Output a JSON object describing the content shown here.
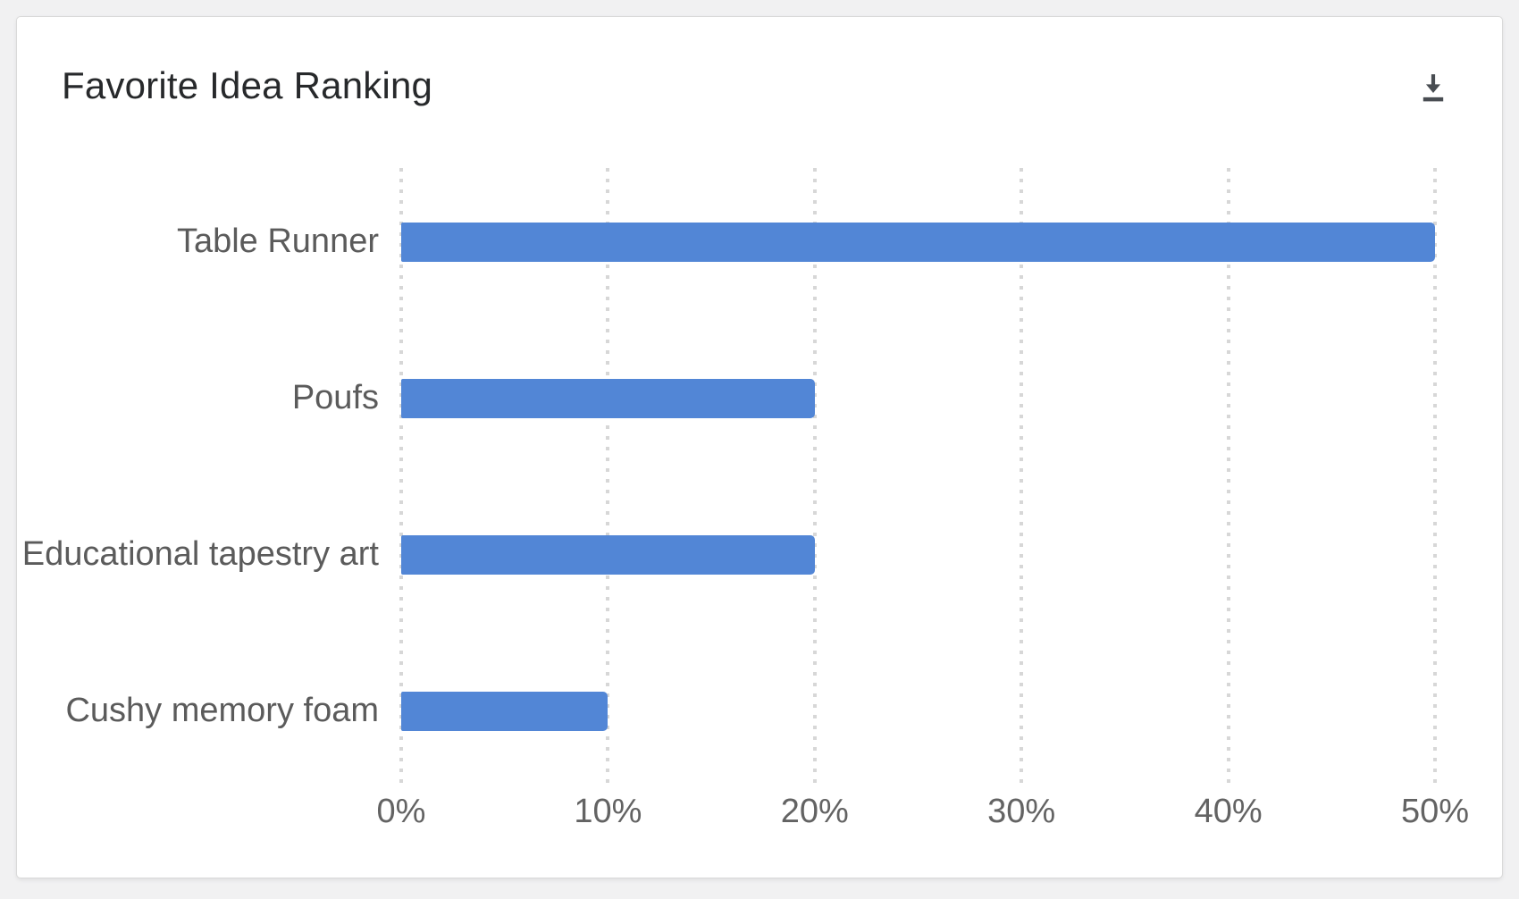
{
  "header": {
    "title": "Favorite Idea Ranking",
    "download_icon": "download-icon"
  },
  "chart_data": {
    "type": "bar",
    "orientation": "horizontal",
    "title": "Favorite Idea Ranking",
    "categories": [
      "Table Runner",
      "Poufs",
      "Educational tapestry art",
      "Cushy memory foam"
    ],
    "values": [
      50,
      20,
      20,
      10
    ],
    "value_unit": "%",
    "xlabel": "",
    "ylabel": "",
    "xlim": [
      0,
      50
    ],
    "x_ticks": [
      "0%",
      "10%",
      "20%",
      "30%",
      "40%",
      "50%"
    ],
    "x_tick_values": [
      0,
      10,
      20,
      30,
      40,
      50
    ],
    "grid": "vertical-dotted",
    "legend": "none",
    "bar_color": "#5286d6"
  },
  "colors": {
    "page_background": "#f1f1f2",
    "card_background": "#ffffff",
    "card_border": "#d9d9d9",
    "title_text": "#27292b",
    "label_text": "#5b5b5b",
    "tick_text": "#636363",
    "gridline": "#d7d7d7",
    "bar": "#5286d6",
    "icon": "#494d52"
  }
}
